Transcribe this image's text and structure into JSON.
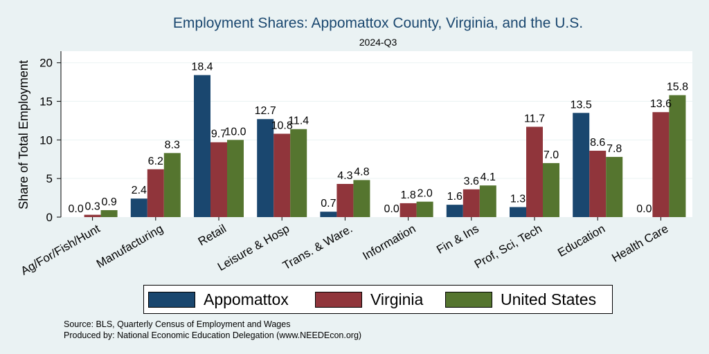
{
  "chart_data": {
    "type": "bar",
    "title": "Employment Shares: Appomattox County, Virginia, and the U.S.",
    "subtitle": "2024-Q3",
    "ylabel": "Share of Total Employment",
    "xlabel": "",
    "ylim": [
      0,
      21.5
    ],
    "yticks": [
      0,
      5,
      10,
      15,
      20
    ],
    "grid": true,
    "legend_position": "bottom",
    "categories": [
      "Ag/For/Fish/Hunt",
      "Manufacturing",
      "Retail",
      "Leisure & Hosp",
      "Trans. & Ware.",
      "Information",
      "Fin & Ins",
      "Prof, Sci, Tech",
      "Education",
      "Health Care"
    ],
    "series": [
      {
        "name": "Appomattox",
        "color": "#1a476f",
        "values": [
          0.0,
          2.4,
          18.4,
          12.7,
          0.7,
          0.0,
          1.6,
          1.3,
          13.5,
          0.0
        ],
        "labels": [
          "0.0",
          "2.4",
          "18.4",
          "12.7",
          "0.7",
          "0.0",
          "1.6",
          "1.3",
          "13.5",
          "0.0"
        ]
      },
      {
        "name": "Virginia",
        "color": "#90353b",
        "values": [
          0.3,
          6.2,
          9.7,
          10.8,
          4.3,
          1.8,
          3.6,
          11.7,
          8.6,
          13.6
        ],
        "labels": [
          "0.3",
          "6.2",
          "9.7",
          "10.8",
          "4.3",
          "1.8",
          "3.6",
          "11.7",
          "8.6",
          "13.6"
        ]
      },
      {
        "name": "United States",
        "color": "#55752f",
        "values": [
          0.9,
          8.3,
          10.0,
          11.4,
          4.8,
          2.0,
          4.1,
          7.0,
          7.8,
          15.8
        ],
        "labels": [
          "0.9",
          "8.3",
          "10.0",
          "11.4",
          "4.8",
          "2.0",
          "4.1",
          "7.0",
          "7.8",
          "15.8"
        ]
      }
    ]
  },
  "notes": {
    "source": "Source: BLS, Quarterly Census of Employment and Wages",
    "produced": "Produced by: National Economic Education Delegation (www.NEEDEcon.org)"
  }
}
